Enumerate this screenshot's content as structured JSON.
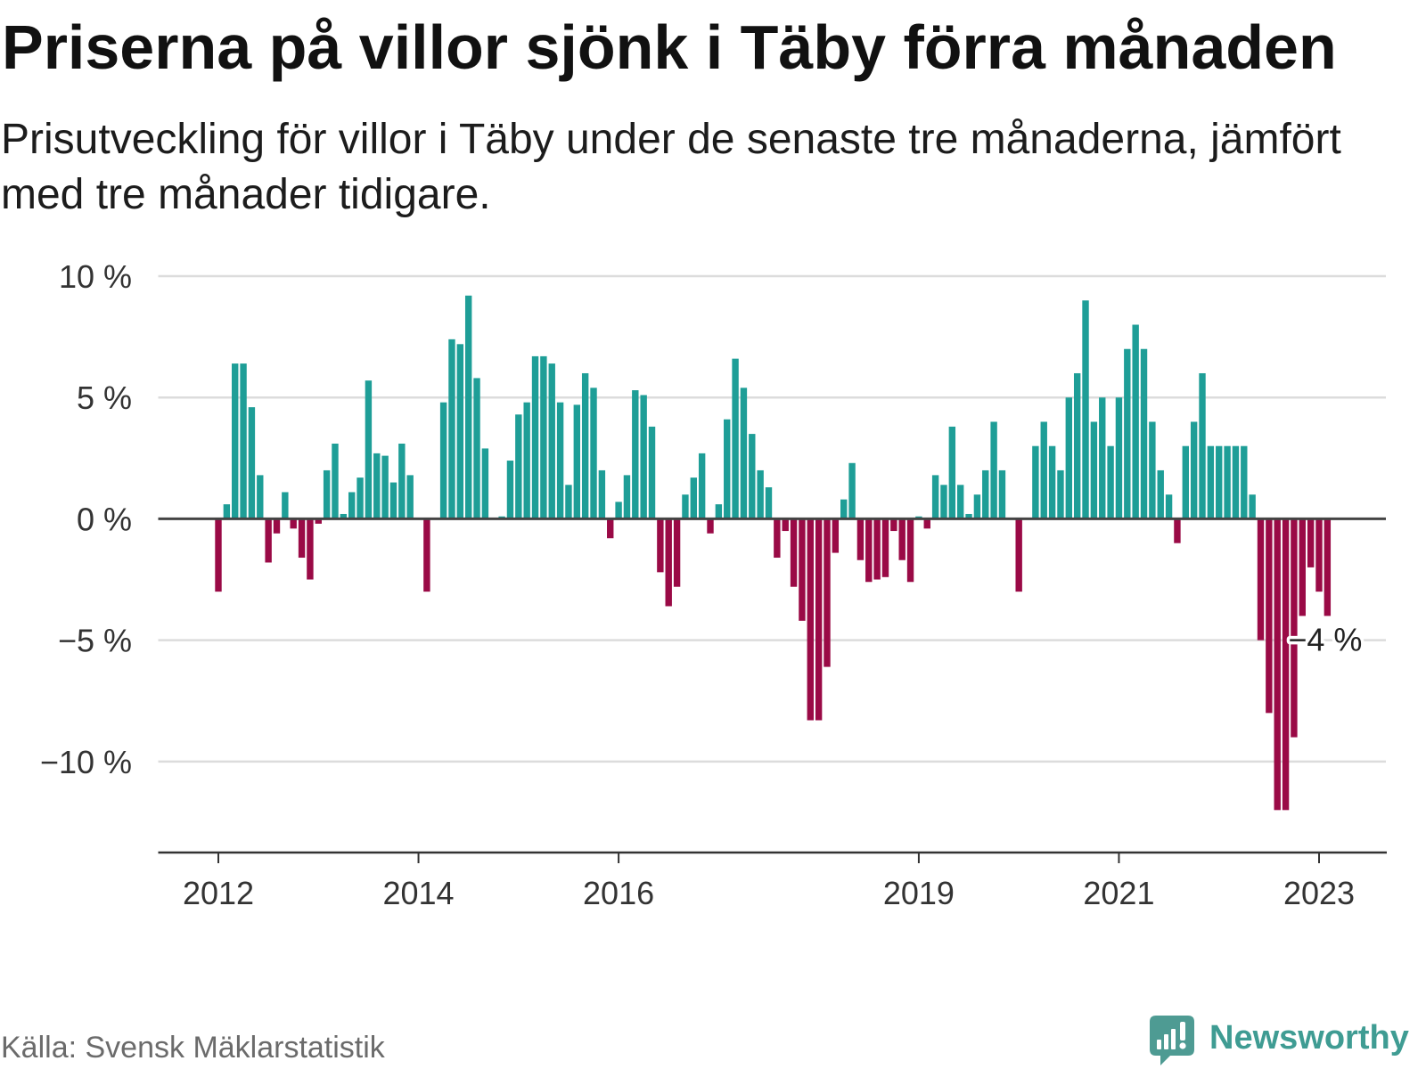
{
  "chart_data": {
    "type": "bar",
    "title": "Priserna på villor sjönk i Täby förra månaden",
    "subtitle": "Prisutveckling för villor i Täby under de senaste tre månaderna, jämfört med tre månader tidigare.",
    "x": [
      "2012-01",
      "2012-02",
      "2012-03",
      "2012-04",
      "2012-05",
      "2012-06",
      "2012-07",
      "2012-08",
      "2012-09",
      "2012-10",
      "2012-11",
      "2012-12",
      "2013-01",
      "2013-02",
      "2013-03",
      "2013-04",
      "2013-05",
      "2013-06",
      "2013-07",
      "2013-08",
      "2013-09",
      "2013-10",
      "2013-11",
      "2013-12",
      "2014-01",
      "2014-02",
      "2014-03",
      "2014-04",
      "2014-05",
      "2014-06",
      "2014-07",
      "2014-08",
      "2014-09",
      "2014-10",
      "2014-11",
      "2014-12",
      "2015-01",
      "2015-02",
      "2015-03",
      "2015-04",
      "2015-05",
      "2015-06",
      "2015-07",
      "2015-08",
      "2015-09",
      "2015-10",
      "2015-11",
      "2015-12",
      "2016-01",
      "2016-02",
      "2016-03",
      "2016-04",
      "2016-05",
      "2016-06",
      "2016-07",
      "2016-08",
      "2016-09",
      "2016-10",
      "2016-11",
      "2016-12",
      "2017-01",
      "2017-02",
      "2017-03",
      "2017-04",
      "2017-05",
      "2017-06",
      "2017-07",
      "2017-08",
      "2017-09",
      "2017-10",
      "2017-11",
      "2017-12",
      "2018-01",
      "2018-02",
      "2018-03",
      "2018-04",
      "2018-05",
      "2018-06",
      "2018-07",
      "2018-08",
      "2018-09",
      "2018-10",
      "2018-11",
      "2018-12",
      "2019-01",
      "2019-02",
      "2019-03",
      "2019-04",
      "2019-05",
      "2019-06",
      "2019-07",
      "2019-08",
      "2019-09",
      "2019-10",
      "2019-11",
      "2019-12",
      "2020-01",
      "2020-02",
      "2020-03",
      "2020-04",
      "2020-05",
      "2020-06",
      "2020-07",
      "2020-08",
      "2020-09",
      "2020-10",
      "2020-11",
      "2020-12",
      "2021-01",
      "2021-02",
      "2021-03",
      "2021-04",
      "2021-05",
      "2021-06",
      "2021-07",
      "2021-08",
      "2021-09",
      "2021-10",
      "2021-11",
      "2021-12",
      "2022-01",
      "2022-02",
      "2022-03",
      "2022-04",
      "2022-05",
      "2022-06",
      "2022-07",
      "2022-08",
      "2022-09",
      "2022-10",
      "2022-11",
      "2022-12",
      "2023-01",
      "2023-02"
    ],
    "values": [
      -3.0,
      0.6,
      6.4,
      6.4,
      4.6,
      1.8,
      -1.8,
      -0.6,
      1.1,
      -0.4,
      -1.6,
      -2.5,
      -0.2,
      2.0,
      3.1,
      0.2,
      1.1,
      1.7,
      5.7,
      2.7,
      2.6,
      1.5,
      3.1,
      1.8,
      0,
      -3.0,
      0,
      4.8,
      7.4,
      7.2,
      9.2,
      5.8,
      2.9,
      0,
      0.1,
      2.4,
      4.3,
      4.8,
      6.7,
      6.7,
      6.4,
      4.8,
      1.4,
      4.7,
      6.0,
      5.4,
      2.0,
      -0.8,
      0.7,
      1.8,
      5.3,
      5.1,
      3.8,
      -2.2,
      -3.6,
      -2.8,
      1.0,
      1.7,
      2.7,
      -0.6,
      0.6,
      4.1,
      6.6,
      5.4,
      3.5,
      2.0,
      1.3,
      -1.6,
      -0.5,
      -2.8,
      -4.2,
      -8.3,
      -8.3,
      -6.1,
      -1.4,
      0.8,
      2.3,
      -1.7,
      -2.6,
      -2.5,
      -2.4,
      -0.5,
      -1.7,
      -2.6,
      0.1,
      -0.4,
      1.8,
      1.4,
      3.8,
      1.4,
      0.2,
      1.0,
      2.0,
      4.0,
      2.0,
      0,
      -3.0,
      0,
      3.0,
      4.0,
      3.0,
      2.0,
      5.0,
      6.0,
      9.0,
      4.0,
      5.0,
      3.0,
      5.0,
      7.0,
      8.0,
      7.0,
      4.0,
      2.0,
      1.0,
      -1.0,
      3.0,
      4.0,
      6.0,
      3.0,
      3.0,
      3.0,
      3.0,
      3.0,
      1.0,
      -5.0,
      -8.0,
      -12.0,
      -12.0,
      -9.0,
      -4.0,
      -2.0,
      -3.0,
      -4.0
    ],
    "y_ticks": [
      {
        "value": 10,
        "label": "10 %"
      },
      {
        "value": 5,
        "label": "5 %"
      },
      {
        "value": 0,
        "label": "0 %"
      },
      {
        "value": -5,
        "label": "−5 %"
      },
      {
        "value": -10,
        "label": "−10 %"
      }
    ],
    "x_ticks": [
      "2012",
      "2014",
      "2016",
      "2019",
      "2021",
      "2023"
    ],
    "ylim": [
      -13.75,
      10.5
    ],
    "grid": true,
    "annotation": {
      "x": "2023-02",
      "y": -4,
      "text": "−4 %"
    },
    "colors": {
      "positive": "#1e9e97",
      "negative": "#9a0a46"
    }
  },
  "source": "Källa: Svensk Mäklarstatistik",
  "logo": {
    "text": "Newsworthy",
    "icon": "newsworthy-logo-icon",
    "color": "#3f9c93"
  }
}
